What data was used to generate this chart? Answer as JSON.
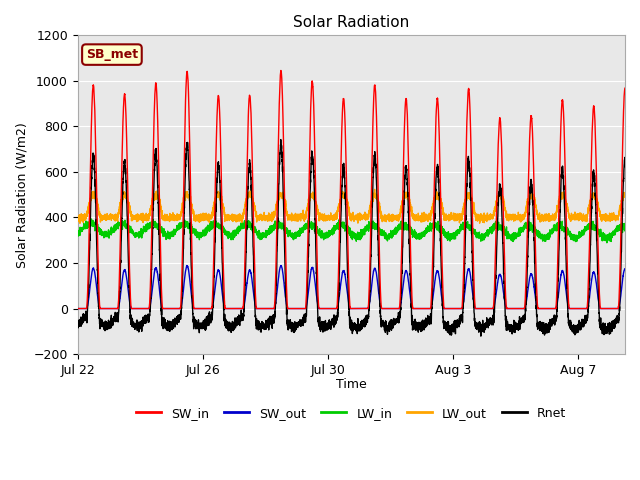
{
  "title": "Solar Radiation",
  "ylabel": "Solar Radiation (W/m2)",
  "xlabel": "Time",
  "ylim": [
    -200,
    1200
  ],
  "yticks": [
    -200,
    0,
    200,
    400,
    600,
    800,
    1000,
    1200
  ],
  "xtick_positions": [
    0,
    4,
    8,
    12,
    16
  ],
  "xtick_labels": [
    "Jul 22",
    "Jul 26",
    "Jul 30",
    "Aug 3",
    "Aug 7"
  ],
  "n_days": 17.5,
  "points_per_day": 288,
  "colors": {
    "SW_in": "#ff0000",
    "SW_out": "#0000cc",
    "LW_in": "#00cc00",
    "LW_out": "#ffa500",
    "Rnet": "#000000"
  },
  "plot_bg": "#e8e8e8",
  "fig_bg": "#ffffff",
  "label_box_text": "SB_met",
  "label_box_bg": "#ffffcc",
  "label_box_edge": "#8b0000"
}
